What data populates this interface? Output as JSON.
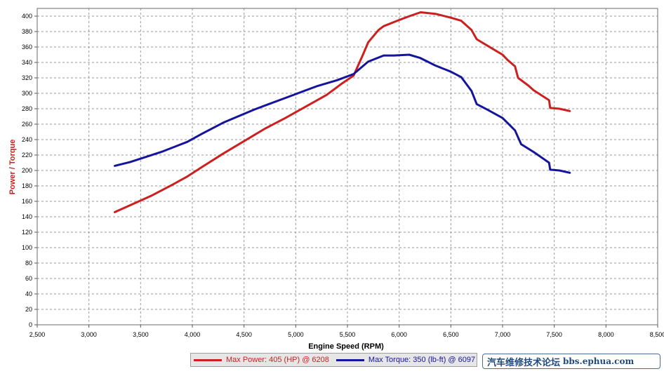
{
  "chart_data": {
    "type": "line",
    "xlabel": "Engine Speed (RPM)",
    "ylabel": "Power / Torque",
    "xlim": [
      2500,
      8500
    ],
    "ylim": [
      0,
      410
    ],
    "x_ticks": [
      "2,500",
      "3,000",
      "3,500",
      "4,000",
      "4,500",
      "5,000",
      "5,500",
      "6,000",
      "6,500",
      "7,000",
      "7,500",
      "8,000",
      "8,500"
    ],
    "y_ticks": [
      "0",
      "20",
      "40",
      "60",
      "80",
      "100",
      "120",
      "140",
      "160",
      "180",
      "200",
      "220",
      "240",
      "260",
      "280",
      "300",
      "320",
      "340",
      "360",
      "380",
      "400"
    ],
    "grid": true,
    "legend_position": "bottom",
    "series": [
      {
        "name": "Max Power: 405 (HP) @ 6208",
        "color": "#cc1f1f",
        "points": [
          [
            3250,
            146
          ],
          [
            3400,
            155
          ],
          [
            3600,
            167
          ],
          [
            3800,
            181
          ],
          [
            3950,
            192
          ],
          [
            4100,
            205
          ],
          [
            4300,
            222
          ],
          [
            4500,
            238
          ],
          [
            4700,
            254
          ],
          [
            4900,
            268
          ],
          [
            5100,
            283
          ],
          [
            5300,
            298
          ],
          [
            5450,
            313
          ],
          [
            5560,
            323
          ],
          [
            5650,
            350
          ],
          [
            5700,
            366
          ],
          [
            5800,
            382
          ],
          [
            5850,
            387
          ],
          [
            6000,
            395
          ],
          [
            6100,
            400
          ],
          [
            6208,
            405
          ],
          [
            6350,
            403
          ],
          [
            6500,
            398
          ],
          [
            6600,
            394
          ],
          [
            6700,
            382
          ],
          [
            6750,
            370
          ],
          [
            6850,
            362
          ],
          [
            7000,
            350
          ],
          [
            7050,
            343
          ],
          [
            7120,
            335
          ],
          [
            7150,
            320
          ],
          [
            7250,
            310
          ],
          [
            7300,
            304
          ],
          [
            7450,
            291
          ],
          [
            7460,
            281
          ],
          [
            7550,
            280
          ],
          [
            7650,
            277
          ]
        ]
      },
      {
        "name": "Max Torque: 350 (lb-ft) @ 6097",
        "color": "#15159c",
        "points": [
          [
            3250,
            206
          ],
          [
            3400,
            211
          ],
          [
            3700,
            224
          ],
          [
            3950,
            237
          ],
          [
            4100,
            248
          ],
          [
            4300,
            262
          ],
          [
            4600,
            279
          ],
          [
            4900,
            294
          ],
          [
            5200,
            309
          ],
          [
            5400,
            317
          ],
          [
            5560,
            325
          ],
          [
            5700,
            341
          ],
          [
            5850,
            349
          ],
          [
            5950,
            349
          ],
          [
            6097,
            350
          ],
          [
            6200,
            346
          ],
          [
            6350,
            336
          ],
          [
            6500,
            328
          ],
          [
            6600,
            321
          ],
          [
            6700,
            303
          ],
          [
            6750,
            286
          ],
          [
            6850,
            279
          ],
          [
            7000,
            268
          ],
          [
            7120,
            252
          ],
          [
            7180,
            234
          ],
          [
            7300,
            224
          ],
          [
            7450,
            210
          ],
          [
            7460,
            201
          ],
          [
            7550,
            200
          ],
          [
            7650,
            197
          ]
        ]
      }
    ]
  },
  "watermark": {
    "text": "汽车维修技术论坛",
    "url": "bbs.ephua.com"
  }
}
